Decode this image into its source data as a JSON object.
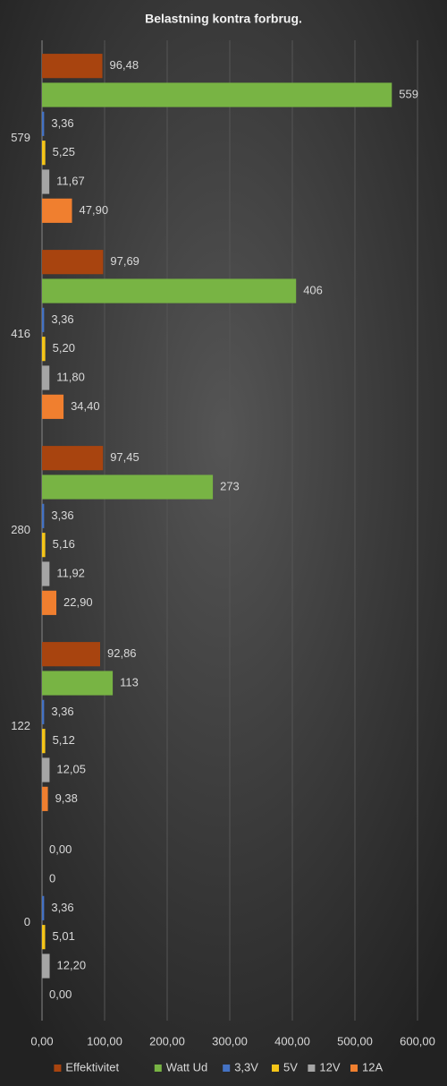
{
  "chart_data": {
    "type": "hbar",
    "title": "Belastning  kontra  forbrug.",
    "categories": [
      "0",
      "122",
      "280",
      "416",
      "579"
    ],
    "series": [
      {
        "name": "Effektivitet",
        "color": "#a8440f",
        "values": [
          0.0,
          92.86,
          97.45,
          97.69,
          96.48
        ],
        "value_labels": [
          "0,00",
          "92,86",
          "97,45",
          "97,69",
          "96,48"
        ]
      },
      {
        "name": "Watt Ud",
        "color": "#78b444",
        "values": [
          0,
          113,
          273,
          406,
          559
        ]
      },
      {
        "name": "3,3V",
        "color": "#4472c4",
        "values": [
          3.36,
          3.36,
          3.36,
          3.36,
          3.36
        ],
        "value_labels": [
          "3,36",
          "3,36",
          "3,36",
          "3,36",
          "3,36"
        ]
      },
      {
        "name": "5V",
        "color": "#f5c518",
        "values": [
          5.01,
          5.12,
          5.16,
          5.2,
          5.25
        ],
        "value_labels": [
          "5,01",
          "5,12",
          "5,16",
          "5,20",
          "5,25"
        ]
      },
      {
        "name": "12V",
        "color": "#a5a5a5",
        "values": [
          12.2,
          12.05,
          11.92,
          11.8,
          11.67
        ],
        "value_labels": [
          "12,20",
          "12,05",
          "11,92",
          "11,80",
          "11,67"
        ]
      },
      {
        "name": "12A",
        "color": "#f07f2f",
        "values": [
          0.0,
          9.38,
          22.9,
          34.4,
          47.9
        ],
        "value_labels": [
          "0,00",
          "9,38",
          "22,90",
          "34,40",
          "47,90"
        ]
      }
    ],
    "xlim": [
      0,
      600
    ],
    "xticks": [
      {
        "value": 0,
        "label": "0,00"
      },
      {
        "value": 100,
        "label": "100,00"
      },
      {
        "value": 200,
        "label": "200,00"
      },
      {
        "value": 300,
        "label": "300,00"
      },
      {
        "value": 400,
        "label": "400,00"
      },
      {
        "value": 500,
        "label": "500,00"
      },
      {
        "value": 600,
        "label": "600,00"
      }
    ],
    "grid": true,
    "legend": "bottom"
  }
}
